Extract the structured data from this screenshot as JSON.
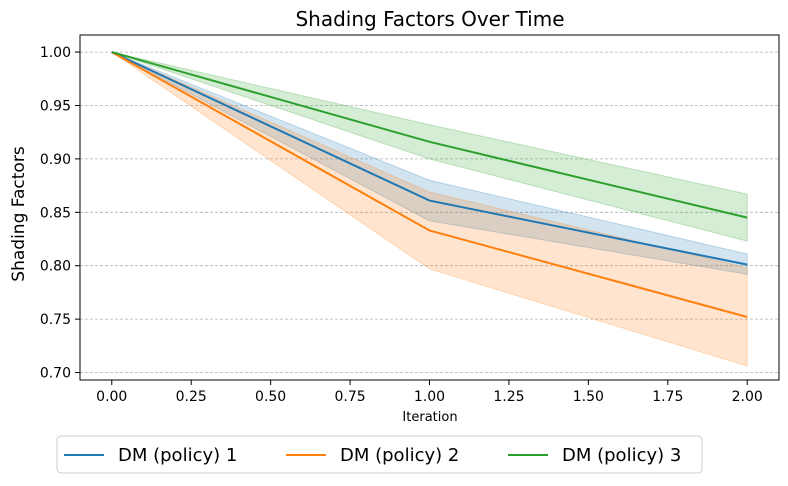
{
  "chart_data": {
    "type": "line",
    "title": "Shading Factors Over Time",
    "xlabel": "Iteration",
    "ylabel": "Shading Factors",
    "xlim": [
      -0.1,
      2.1
    ],
    "ylim": [
      0.693,
      1.016
    ],
    "x_ticks": [
      "0.00",
      "0.25",
      "0.50",
      "0.75",
      "1.00",
      "1.25",
      "1.50",
      "1.75",
      "2.00"
    ],
    "y_ticks": [
      "0.70",
      "0.75",
      "0.80",
      "0.85",
      "0.90",
      "0.95",
      "1.00"
    ],
    "grid": "y-dashed",
    "legend_position": "bottom-center",
    "x": [
      0,
      1,
      2
    ],
    "series": [
      {
        "name": "DM (policy) 1",
        "color": "#1f77b4",
        "values": [
          1.0,
          0.861,
          0.801
        ],
        "lower": [
          1.0,
          0.842,
          0.792
        ],
        "upper": [
          1.0,
          0.88,
          0.811
        ]
      },
      {
        "name": "DM (policy) 2",
        "color": "#ff7f0e",
        "values": [
          1.0,
          0.833,
          0.752
        ],
        "lower": [
          1.0,
          0.797,
          0.706
        ],
        "upper": [
          1.0,
          0.869,
          0.798
        ]
      },
      {
        "name": "DM (policy) 3",
        "color": "#2ca02c",
        "values": [
          1.0,
          0.916,
          0.845
        ],
        "lower": [
          1.0,
          0.9,
          0.823
        ],
        "upper": [
          1.0,
          0.932,
          0.867
        ]
      }
    ]
  }
}
